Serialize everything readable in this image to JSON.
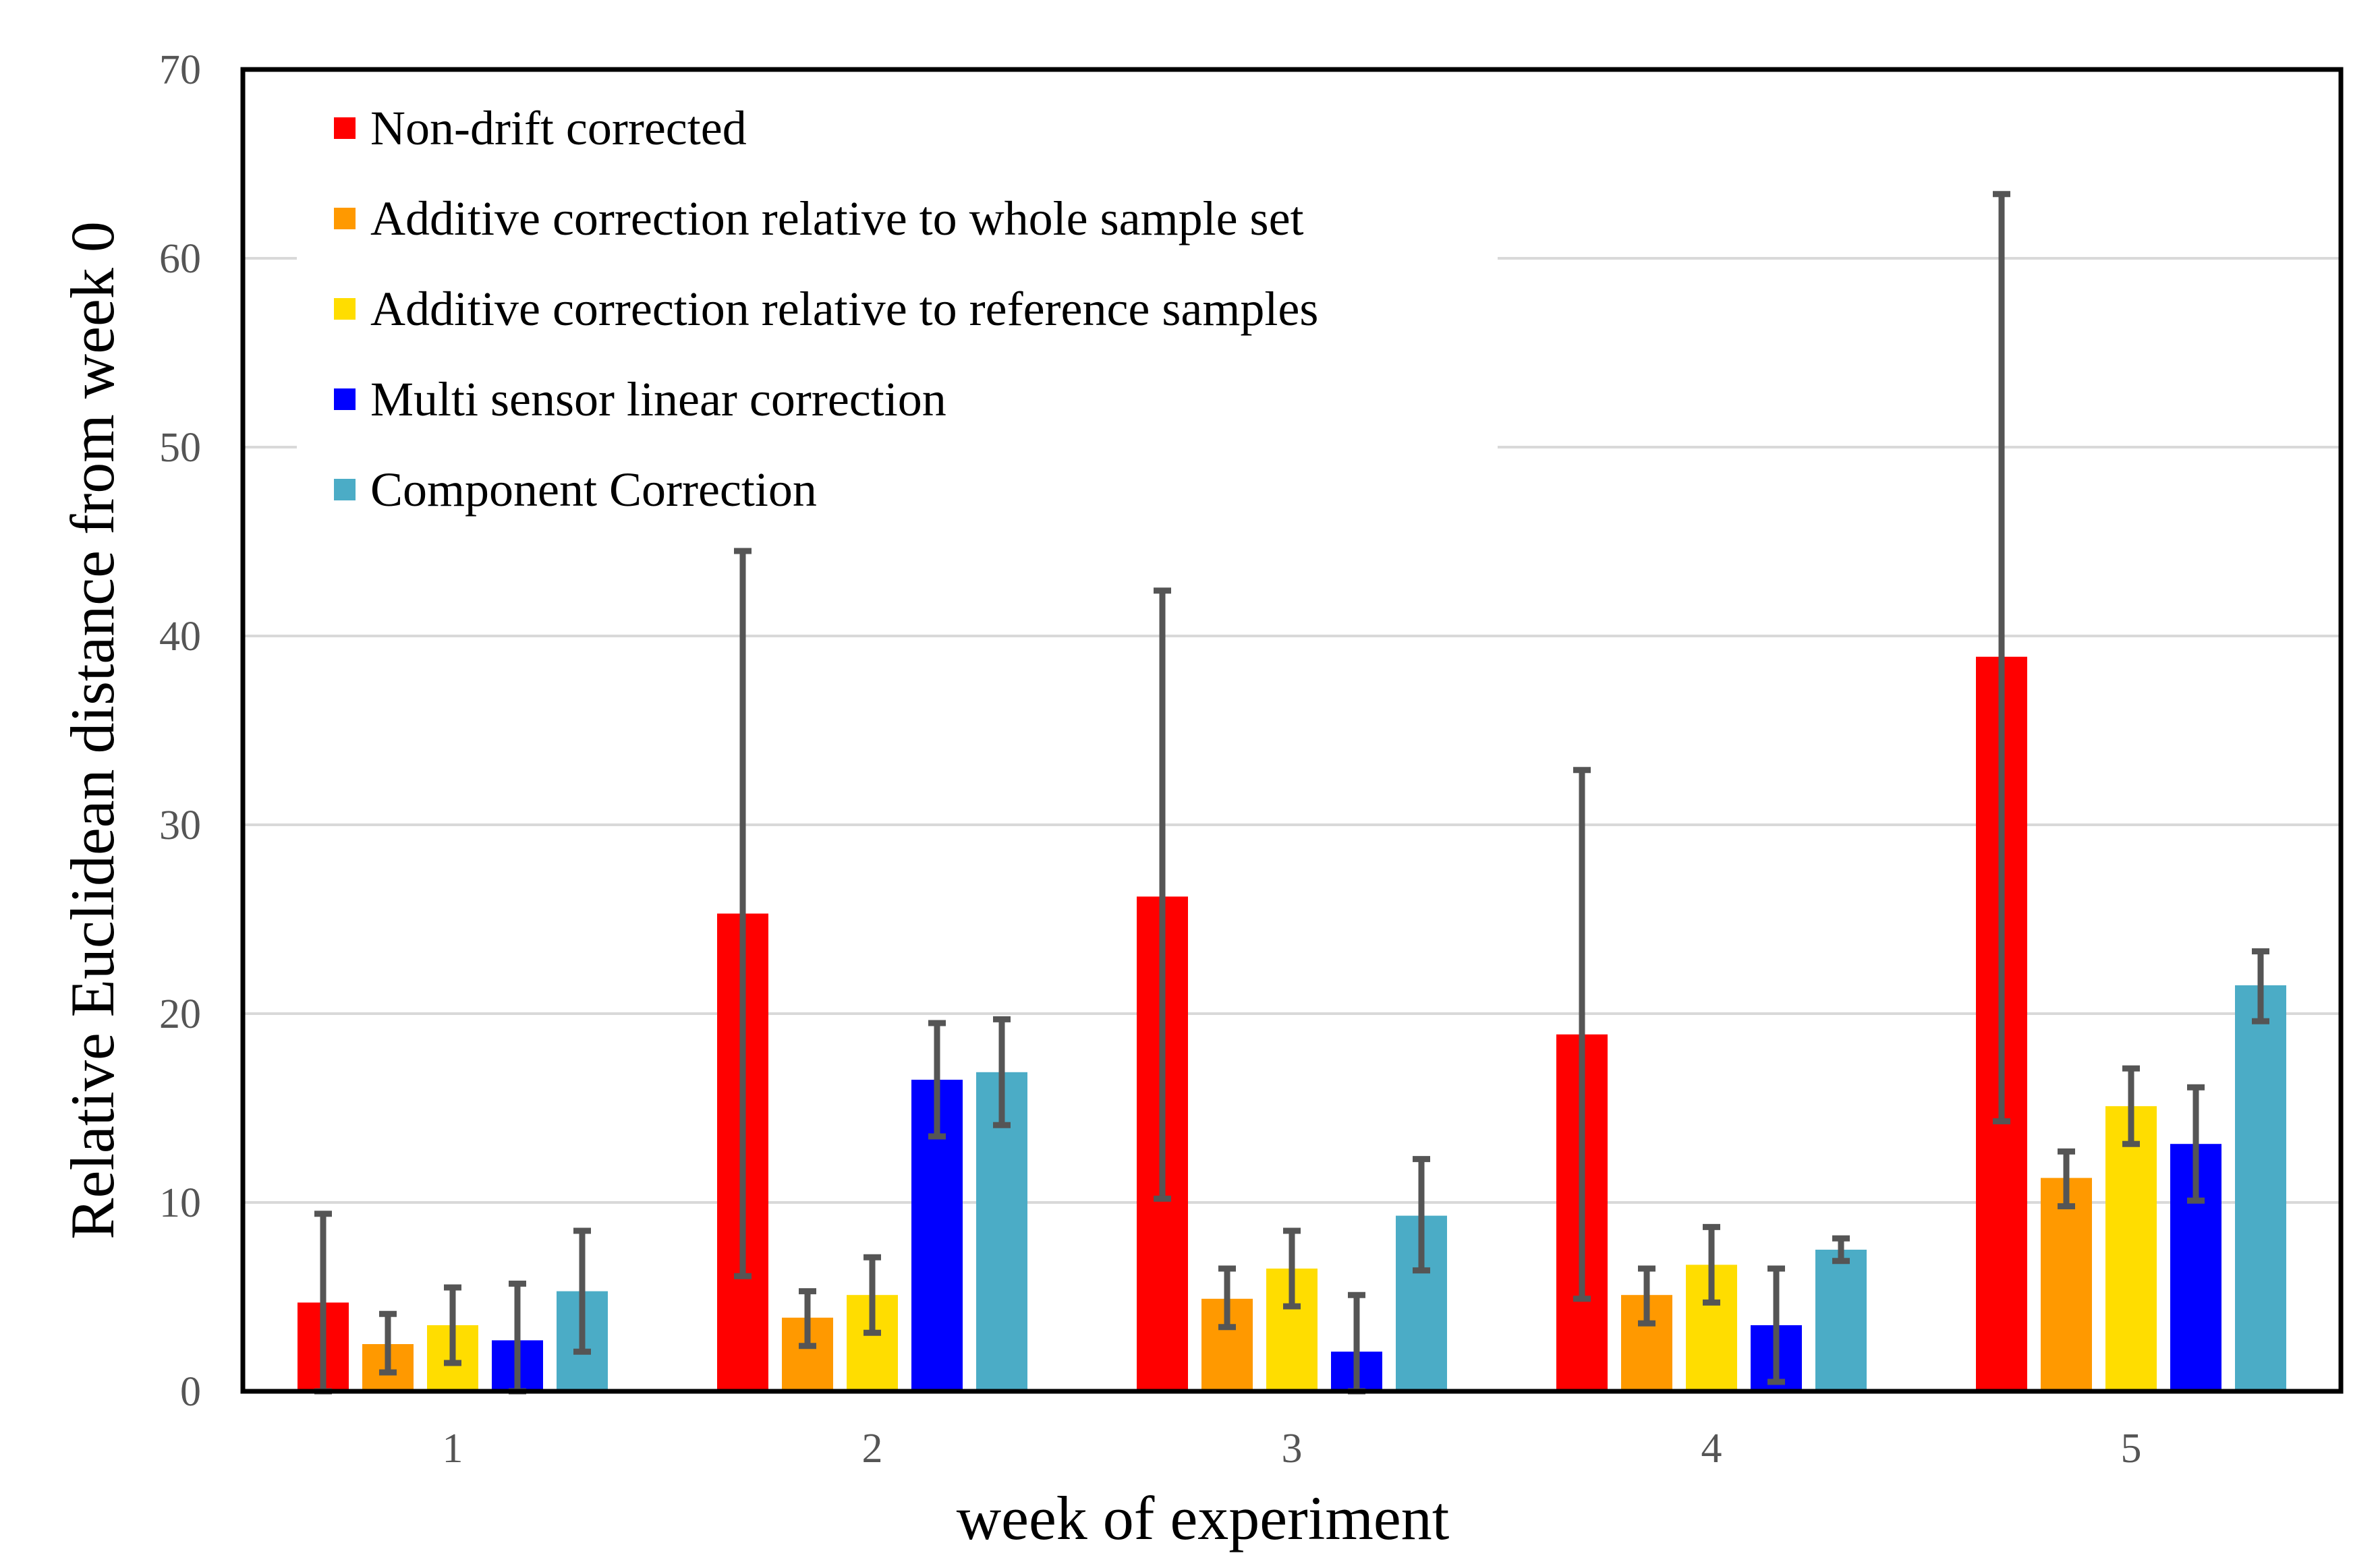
{
  "chart_data": {
    "type": "bar",
    "title": "",
    "xlabel": "week of experiment",
    "ylabel": "Relative  Euclidean distance from week 0",
    "categories": [
      "1",
      "2",
      "3",
      "4",
      "5"
    ],
    "ylim": [
      0,
      70
    ],
    "yticks": [
      0,
      10,
      20,
      30,
      40,
      50,
      60,
      70
    ],
    "grid": true,
    "legend_position": "top-left",
    "series": [
      {
        "name": "Non-drift corrected",
        "color": "#ff0000",
        "values": [
          4.7,
          25.3,
          26.2,
          18.9,
          38.9
        ],
        "err_low": [
          4.7,
          19.2,
          16.0,
          14.0,
          24.6
        ],
        "err_high": [
          4.7,
          19.2,
          16.2,
          14.0,
          24.5
        ]
      },
      {
        "name": "Additive correction relative to whole sample set",
        "color": "#ff9900",
        "values": [
          2.5,
          3.9,
          4.9,
          5.1,
          11.3
        ],
        "err_low": [
          1.5,
          1.5,
          1.5,
          1.5,
          1.5
        ],
        "err_high": [
          1.6,
          1.4,
          1.6,
          1.4,
          1.4
        ]
      },
      {
        "name": "Additive correction relative to reference samples",
        "color": "#ffdd00",
        "values": [
          3.5,
          5.1,
          6.5,
          6.7,
          15.1
        ],
        "err_low": [
          2.0,
          2.0,
          2.0,
          2.0,
          2.0
        ],
        "err_high": [
          2.0,
          2.0,
          2.0,
          2.0,
          2.0
        ]
      },
      {
        "name": "Multi sensor linear correction",
        "color": "#0000ff",
        "values": [
          2.7,
          16.5,
          2.1,
          3.5,
          13.1
        ],
        "err_low": [
          2.7,
          3.0,
          2.1,
          3.0,
          3.0
        ],
        "err_high": [
          3.0,
          3.0,
          3.0,
          3.0,
          3.0
        ]
      },
      {
        "name": "Component Correction",
        "color": "#4bacc6",
        "values": [
          5.3,
          16.9,
          9.3,
          7.5,
          21.5
        ],
        "err_low": [
          3.2,
          2.8,
          2.9,
          0.6,
          1.9
        ],
        "err_high": [
          3.2,
          2.8,
          3.0,
          0.6,
          1.8
        ]
      }
    ]
  }
}
